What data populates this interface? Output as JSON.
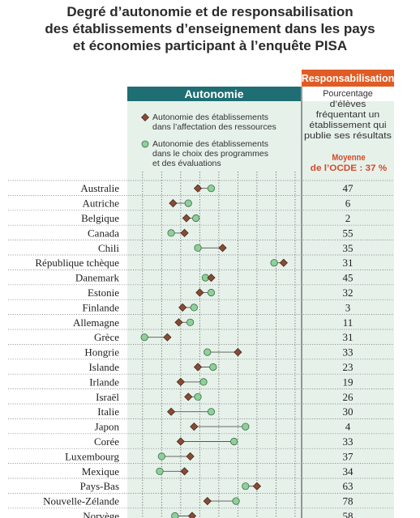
{
  "title_lines": [
    "Degré d’autonomie et de responsabilisation",
    "des établissements d’enseignement dans les pays",
    "et économies participant à l’enquête PISA"
  ],
  "colors": {
    "teal": "#1e6e73",
    "orange": "#e05c24",
    "panel": "#e6f1ea",
    "diamond": "#8a4a33",
    "circle": "#8fd09a",
    "oecd_red": "#d24a2a"
  },
  "chart_data": {
    "type": "dot-plot",
    "headers": {
      "autonomy": "Autonomie",
      "accountability": "Responsabilisation"
    },
    "legend": {
      "resources": [
        "Autonomie des établissements",
        "dans l’affectation des ressources"
      ],
      "curriculum": [
        "Autonomie des établissements",
        "dans le choix des programmes",
        "et des évaluations"
      ]
    },
    "accountability_note": [
      "Pourcentage",
      "d’élèves",
      "fréquentant un",
      "établissement qui",
      "publie ses résultats"
    ],
    "oecd_average": [
      "Moyenne",
      "de l’OCDE : 37 %"
    ],
    "countries": [
      {
        "name": "Australie",
        "resources": -0.05,
        "curriculum": 0.3,
        "percent": "47"
      },
      {
        "name": "Autriche",
        "resources": -0.7,
        "curriculum": -0.3,
        "percent": "6"
      },
      {
        "name": "Belgique",
        "resources": -0.35,
        "curriculum": -0.1,
        "percent": "2"
      },
      {
        "name": "Canada",
        "resources": -0.4,
        "curriculum": -0.75,
        "percent": "55"
      },
      {
        "name": "Chili",
        "resources": 0.6,
        "curriculum": -0.05,
        "percent": "35"
      },
      {
        "name": "République tchèque",
        "resources": 2.2,
        "curriculum": 1.95,
        "percent": "31"
      },
      {
        "name": "Danemark",
        "resources": 0.3,
        "curriculum": 0.15,
        "percent": "45"
      },
      {
        "name": "Estonie",
        "resources": 0.0,
        "curriculum": 0.3,
        "percent": "32"
      },
      {
        "name": "Finlande",
        "resources": -0.45,
        "curriculum": -0.15,
        "percent": "3"
      },
      {
        "name": "Allemagne",
        "resources": -0.55,
        "curriculum": -0.25,
        "percent": "11"
      },
      {
        "name": "Grèce",
        "resources": -0.85,
        "curriculum": -1.45,
        "percent": "31"
      },
      {
        "name": "Hongrie",
        "resources": 1.0,
        "curriculum": 0.2,
        "percent": "33"
      },
      {
        "name": "Islande",
        "resources": -0.05,
        "curriculum": 0.35,
        "percent": "23"
      },
      {
        "name": "Irlande",
        "resources": -0.5,
        "curriculum": 0.1,
        "percent": "19"
      },
      {
        "name": "Israël",
        "resources": -0.3,
        "curriculum": -0.05,
        "percent": "26"
      },
      {
        "name": "Italie",
        "resources": -0.75,
        "curriculum": 0.3,
        "percent": "30"
      },
      {
        "name": "Japon",
        "resources": -0.15,
        "curriculum": 1.2,
        "percent": "4"
      },
      {
        "name": "Corée",
        "resources": -0.5,
        "curriculum": 0.9,
        "percent": "33"
      },
      {
        "name": "Luxembourg",
        "resources": -0.25,
        "curriculum": -1.0,
        "percent": "37"
      },
      {
        "name": "Mexique",
        "resources": -0.4,
        "curriculum": -1.05,
        "percent": "34"
      },
      {
        "name": "Pays-Bas",
        "resources": 1.5,
        "curriculum": 1.2,
        "percent": "63"
      },
      {
        "name": "Nouvelle-Zélande",
        "resources": 0.2,
        "curriculum": 0.95,
        "percent": "78"
      },
      {
        "name": "Norvège",
        "resources": -0.2,
        "curriculum": -0.65,
        "percent": "58"
      }
    ]
  }
}
